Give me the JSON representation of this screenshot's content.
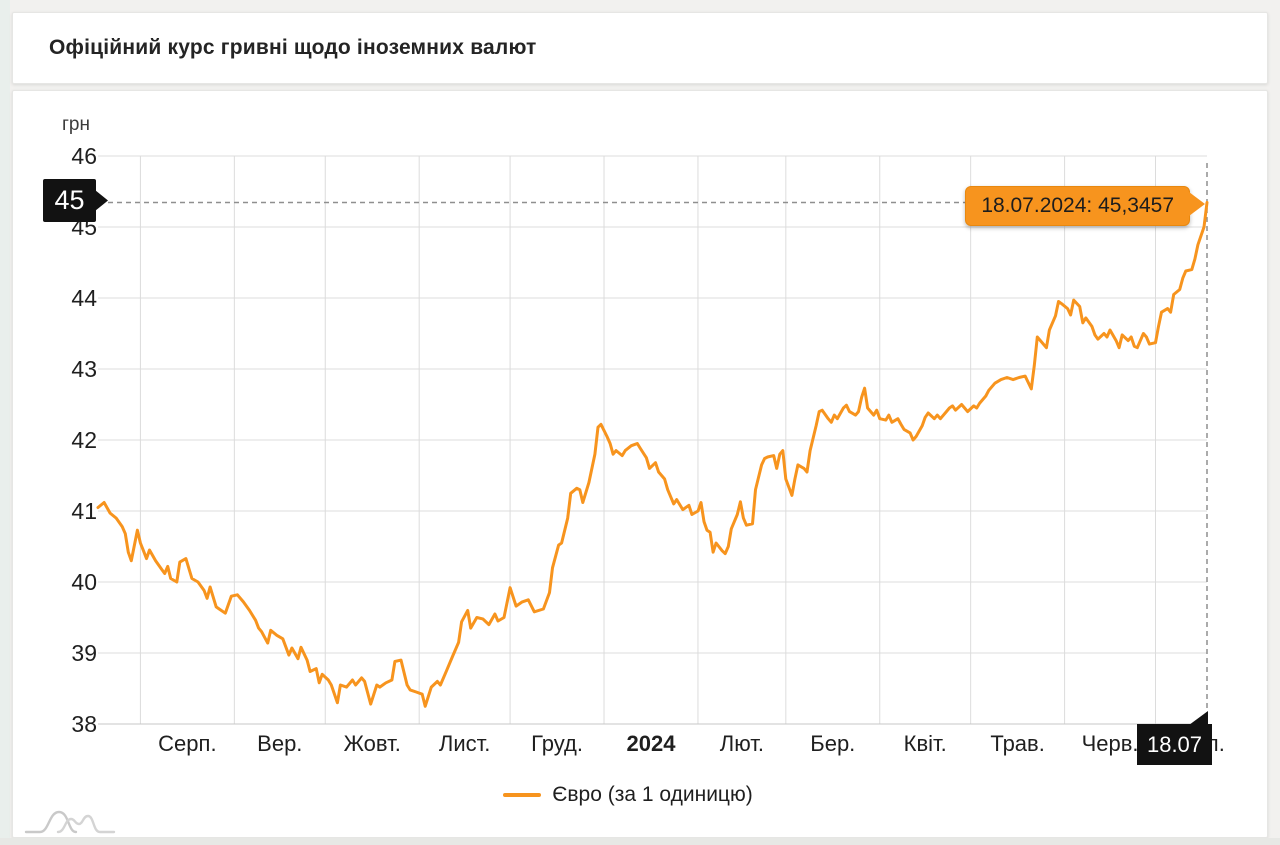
{
  "header": {
    "title": "Офіційний курс гривні щодо іноземних валют"
  },
  "chart": {
    "unit_label": "грн",
    "legend_label": "Євро (за 1 одиницю)",
    "tooltip_text": "18.07.2024: 45,3457",
    "y_marker_label": "45",
    "x_marker_label": "18.07",
    "accent_color": "#f7941e",
    "marker_bg_color": "#121212",
    "grid_color": "#dcdcdc"
  },
  "chart_data": {
    "type": "line",
    "title": "Офіційний курс гривні щодо іноземних валют",
    "ylabel": "грн",
    "ylim": [
      38,
      46
    ],
    "y_ticks": [
      46,
      45,
      44,
      43,
      42,
      41,
      40,
      39,
      38
    ],
    "grid": true,
    "legend_position": "bottom",
    "x_axis_days_span": 366,
    "month_gridline_days": [
      14,
      45,
      75,
      106,
      136,
      167,
      198,
      227,
      258,
      288,
      319,
      349
    ],
    "month_labels": [
      {
        "label": "Серп.",
        "day": 29.5,
        "bold": false
      },
      {
        "label": "Вер.",
        "day": 60,
        "bold": false
      },
      {
        "label": "Жовт.",
        "day": 90.5,
        "bold": false
      },
      {
        "label": "Лист.",
        "day": 121,
        "bold": false
      },
      {
        "label": "Груд.",
        "day": 151.5,
        "bold": false
      },
      {
        "label": "2024",
        "day": 182.5,
        "bold": true
      },
      {
        "label": "Лют.",
        "day": 212.5,
        "bold": false
      },
      {
        "label": "Бер.",
        "day": 242.5,
        "bold": false
      },
      {
        "label": "Квіт.",
        "day": 273,
        "bold": false
      },
      {
        "label": "Трав.",
        "day": 303.5,
        "bold": false
      },
      {
        "label": "Черв.",
        "day": 334,
        "bold": false
      },
      {
        "label": "Лип.",
        "day": 364.5,
        "bold": false
      }
    ],
    "highlight_point": {
      "date": "18.07.2024",
      "value": 45.3457,
      "value_text": "45,3457"
    },
    "series": [
      {
        "name": "Євро (за 1 одиницю)",
        "color": "#f7941e",
        "points": [
          [
            0,
            41.05
          ],
          [
            2,
            41.12
          ],
          [
            4,
            40.97
          ],
          [
            6,
            40.9
          ],
          [
            8,
            40.78
          ],
          [
            9,
            40.68
          ],
          [
            10,
            40.42
          ],
          [
            11,
            40.3
          ],
          [
            13,
            40.73
          ],
          [
            14,
            40.55
          ],
          [
            15,
            40.44
          ],
          [
            16,
            40.33
          ],
          [
            17,
            40.45
          ],
          [
            19,
            40.3
          ],
          [
            21,
            40.18
          ],
          [
            22,
            40.12
          ],
          [
            23,
            40.22
          ],
          [
            24,
            40.05
          ],
          [
            26,
            40.0
          ],
          [
            27,
            40.28
          ],
          [
            29,
            40.33
          ],
          [
            31,
            40.05
          ],
          [
            33,
            40.0
          ],
          [
            35,
            39.88
          ],
          [
            36,
            39.77
          ],
          [
            37,
            39.93
          ],
          [
            39,
            39.65
          ],
          [
            40,
            39.62
          ],
          [
            42,
            39.56
          ],
          [
            44,
            39.8
          ],
          [
            46,
            39.82
          ],
          [
            48,
            39.72
          ],
          [
            50,
            39.6
          ],
          [
            52,
            39.46
          ],
          [
            53,
            39.35
          ],
          [
            54,
            39.3
          ],
          [
            56,
            39.14
          ],
          [
            57,
            39.32
          ],
          [
            59,
            39.25
          ],
          [
            61,
            39.2
          ],
          [
            63,
            38.97
          ],
          [
            64,
            39.07
          ],
          [
            66,
            38.92
          ],
          [
            67,
            39.08
          ],
          [
            69,
            38.9
          ],
          [
            70,
            38.74
          ],
          [
            72,
            38.78
          ],
          [
            73,
            38.58
          ],
          [
            74,
            38.7
          ],
          [
            76,
            38.62
          ],
          [
            77,
            38.55
          ],
          [
            79,
            38.3
          ],
          [
            80,
            38.55
          ],
          [
            82,
            38.52
          ],
          [
            84,
            38.62
          ],
          [
            85,
            38.55
          ],
          [
            87,
            38.65
          ],
          [
            88,
            38.6
          ],
          [
            90,
            38.28
          ],
          [
            92,
            38.55
          ],
          [
            93,
            38.52
          ],
          [
            95,
            38.58
          ],
          [
            97,
            38.62
          ],
          [
            98,
            38.88
          ],
          [
            100,
            38.9
          ],
          [
            102,
            38.55
          ],
          [
            103,
            38.48
          ],
          [
            105,
            38.45
          ],
          [
            107,
            38.42
          ],
          [
            108,
            38.25
          ],
          [
            110,
            38.52
          ],
          [
            112,
            38.6
          ],
          [
            113,
            38.55
          ],
          [
            115,
            38.75
          ],
          [
            117,
            38.95
          ],
          [
            119,
            39.15
          ],
          [
            120,
            39.44
          ],
          [
            122,
            39.6
          ],
          [
            123,
            39.35
          ],
          [
            125,
            39.5
          ],
          [
            127,
            39.48
          ],
          [
            129,
            39.4
          ],
          [
            131,
            39.55
          ],
          [
            132,
            39.45
          ],
          [
            134,
            39.5
          ],
          [
            136,
            39.92
          ],
          [
            138,
            39.66
          ],
          [
            140,
            39.72
          ],
          [
            142,
            39.75
          ],
          [
            144,
            39.58
          ],
          [
            147,
            39.62
          ],
          [
            149,
            39.85
          ],
          [
            150,
            40.2
          ],
          [
            152,
            40.52
          ],
          [
            153,
            40.55
          ],
          [
            155,
            40.9
          ],
          [
            156,
            41.25
          ],
          [
            158,
            41.32
          ],
          [
            159,
            41.3
          ],
          [
            160,
            41.12
          ],
          [
            162,
            41.4
          ],
          [
            164,
            41.8
          ],
          [
            165,
            42.18
          ],
          [
            166,
            42.22
          ],
          [
            168,
            42.05
          ],
          [
            169,
            41.95
          ],
          [
            170,
            41.8
          ],
          [
            171,
            41.85
          ],
          [
            173,
            41.78
          ],
          [
            174,
            41.85
          ],
          [
            176,
            41.92
          ],
          [
            178,
            41.95
          ],
          [
            179,
            41.88
          ],
          [
            181,
            41.75
          ],
          [
            182,
            41.6
          ],
          [
            184,
            41.68
          ],
          [
            185,
            41.55
          ],
          [
            187,
            41.45
          ],
          [
            188,
            41.3
          ],
          [
            190,
            41.1
          ],
          [
            191,
            41.16
          ],
          [
            193,
            41.02
          ],
          [
            195,
            41.08
          ],
          [
            196,
            40.95
          ],
          [
            198,
            41.0
          ],
          [
            199,
            41.12
          ],
          [
            200,
            40.85
          ],
          [
            201,
            40.73
          ],
          [
            202,
            40.7
          ],
          [
            203,
            40.42
          ],
          [
            204,
            40.55
          ],
          [
            206,
            40.44
          ],
          [
            207,
            40.4
          ],
          [
            208,
            40.5
          ],
          [
            209,
            40.75
          ],
          [
            211,
            40.95
          ],
          [
            212,
            41.13
          ],
          [
            213,
            40.9
          ],
          [
            214,
            40.8
          ],
          [
            216,
            40.82
          ],
          [
            217,
            41.3
          ],
          [
            219,
            41.65
          ],
          [
            220,
            41.74
          ],
          [
            221,
            41.76
          ],
          [
            223,
            41.78
          ],
          [
            224,
            41.6
          ],
          [
            225,
            41.8
          ],
          [
            226,
            41.85
          ],
          [
            227,
            41.45
          ],
          [
            229,
            41.22
          ],
          [
            230,
            41.45
          ],
          [
            231,
            41.65
          ],
          [
            233,
            41.6
          ],
          [
            234,
            41.55
          ],
          [
            235,
            41.85
          ],
          [
            237,
            42.2
          ],
          [
            238,
            42.4
          ],
          [
            239,
            42.42
          ],
          [
            241,
            42.3
          ],
          [
            242,
            42.25
          ],
          [
            243,
            42.35
          ],
          [
            244,
            42.3
          ],
          [
            246,
            42.45
          ],
          [
            247,
            42.49
          ],
          [
            248,
            42.4
          ],
          [
            250,
            42.35
          ],
          [
            251,
            42.4
          ],
          [
            252,
            42.6
          ],
          [
            253,
            42.73
          ],
          [
            254,
            42.45
          ],
          [
            256,
            42.35
          ],
          [
            257,
            42.42
          ],
          [
            258,
            42.3
          ],
          [
            260,
            42.28
          ],
          [
            261,
            42.35
          ],
          [
            262,
            42.25
          ],
          [
            264,
            42.3
          ],
          [
            265,
            42.22
          ],
          [
            266,
            42.15
          ],
          [
            268,
            42.1
          ],
          [
            269,
            42.0
          ],
          [
            270,
            42.05
          ],
          [
            272,
            42.2
          ],
          [
            273,
            42.32
          ],
          [
            274,
            42.38
          ],
          [
            276,
            42.3
          ],
          [
            277,
            42.35
          ],
          [
            278,
            42.3
          ],
          [
            280,
            42.4
          ],
          [
            281,
            42.45
          ],
          [
            282,
            42.48
          ],
          [
            283,
            42.42
          ],
          [
            285,
            42.5
          ],
          [
            286,
            42.45
          ],
          [
            287,
            42.4
          ],
          [
            289,
            42.48
          ],
          [
            290,
            42.45
          ],
          [
            291,
            42.52
          ],
          [
            293,
            42.62
          ],
          [
            294,
            42.7
          ],
          [
            296,
            42.8
          ],
          [
            298,
            42.85
          ],
          [
            300,
            42.88
          ],
          [
            302,
            42.85
          ],
          [
            304,
            42.88
          ],
          [
            306,
            42.9
          ],
          [
            308,
            42.72
          ],
          [
            309,
            43.05
          ],
          [
            310,
            43.45
          ],
          [
            312,
            43.35
          ],
          [
            313,
            43.3
          ],
          [
            314,
            43.55
          ],
          [
            316,
            43.75
          ],
          [
            317,
            43.95
          ],
          [
            318,
            43.92
          ],
          [
            320,
            43.85
          ],
          [
            321,
            43.76
          ],
          [
            322,
            43.97
          ],
          [
            324,
            43.88
          ],
          [
            325,
            43.65
          ],
          [
            326,
            43.72
          ],
          [
            328,
            43.6
          ],
          [
            329,
            43.48
          ],
          [
            330,
            43.42
          ],
          [
            332,
            43.5
          ],
          [
            333,
            43.45
          ],
          [
            334,
            43.55
          ],
          [
            336,
            43.4
          ],
          [
            337,
            43.3
          ],
          [
            338,
            43.48
          ],
          [
            340,
            43.4
          ],
          [
            341,
            43.45
          ],
          [
            342,
            43.32
          ],
          [
            343,
            43.3
          ],
          [
            345,
            43.5
          ],
          [
            346,
            43.45
          ],
          [
            347,
            43.35
          ],
          [
            349,
            43.37
          ],
          [
            350,
            43.6
          ],
          [
            351,
            43.8
          ],
          [
            353,
            43.85
          ],
          [
            354,
            43.8
          ],
          [
            355,
            44.05
          ],
          [
            357,
            44.12
          ],
          [
            358,
            44.28
          ],
          [
            359,
            44.38
          ],
          [
            361,
            44.4
          ],
          [
            362,
            44.55
          ],
          [
            363,
            44.75
          ],
          [
            365,
            45.0
          ],
          [
            366,
            45.3457
          ]
        ]
      }
    ]
  }
}
